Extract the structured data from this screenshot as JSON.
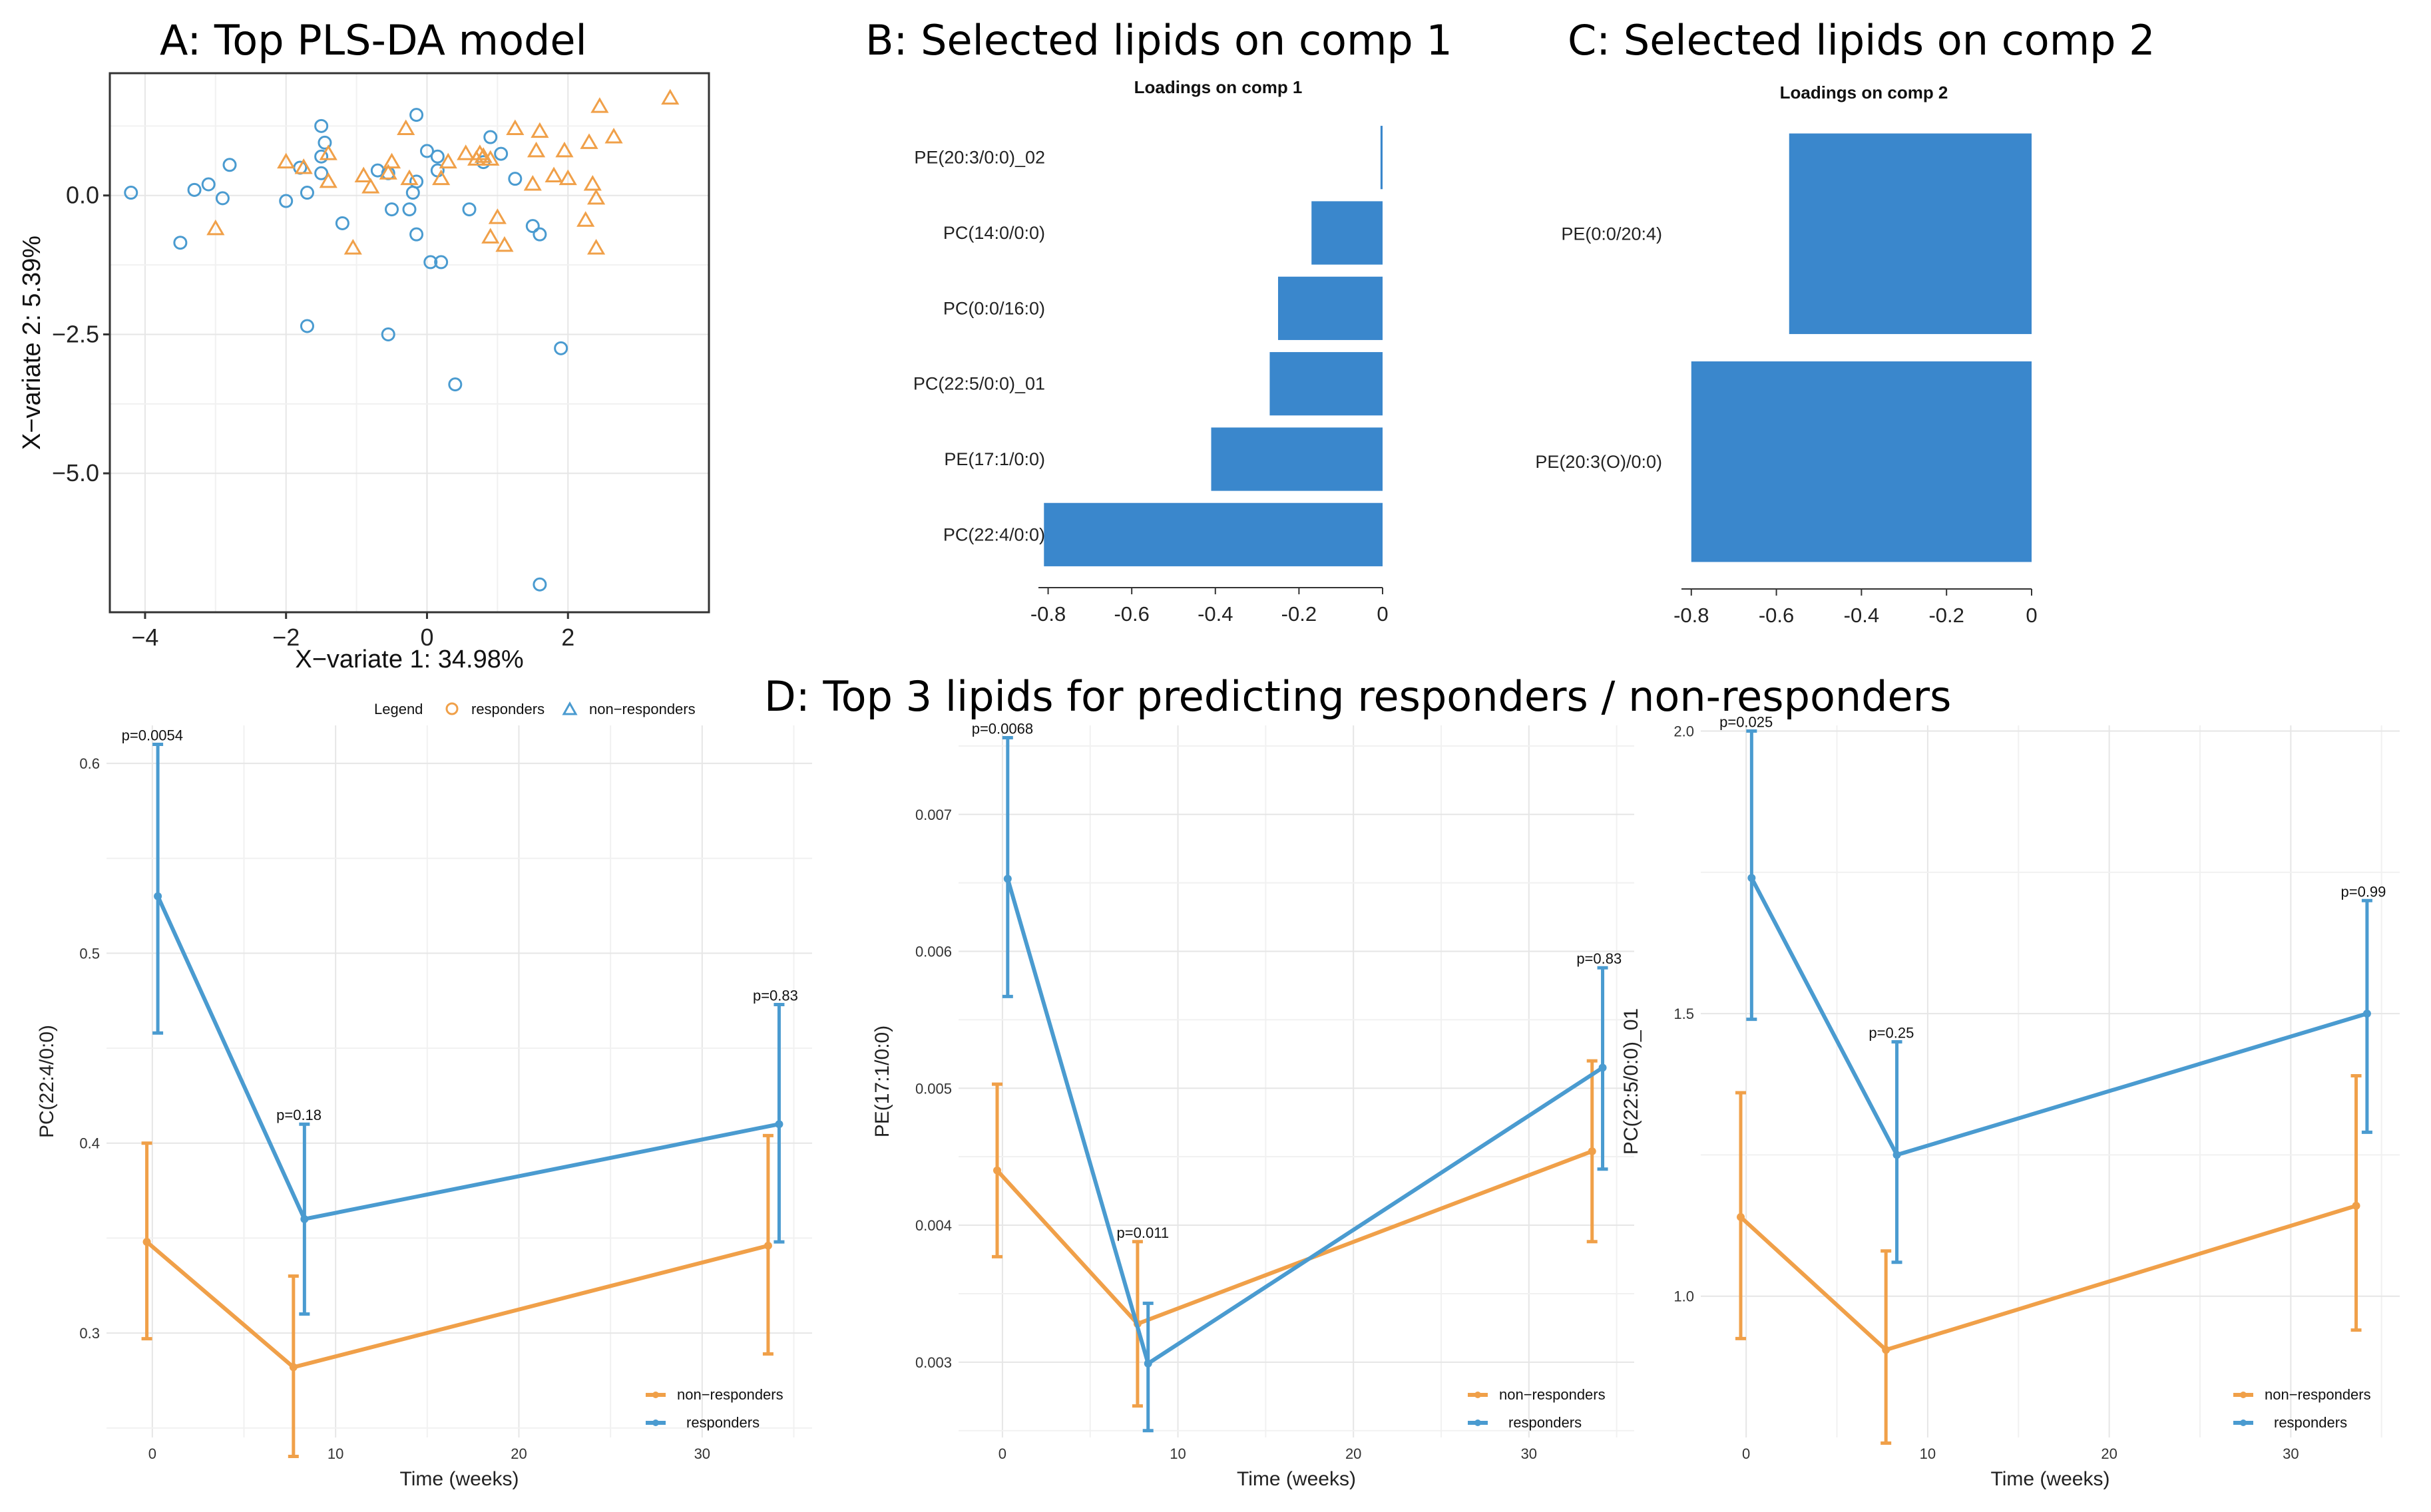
{
  "panel_titles": {
    "a": "A: Top PLS-DA model",
    "b": "B: Selected lipids on comp 1",
    "c": "C: Selected lipids on comp 2",
    "d": "D: Top 3 lipids for predicting responders / non-responders"
  },
  "colors": {
    "orange": "#F0A049",
    "blue": "#4A9BD0",
    "bar": "#3A87CC"
  },
  "chart_data": [
    {
      "id": "A",
      "type": "scatter",
      "title": "A: Top PLS-DA model",
      "xlabel": "X−variate 1: 34.98%",
      "ylabel": "X−variate 2: 5.39%",
      "xlim": [
        -4.5,
        4.0
      ],
      "ylim": [
        -7.5,
        2.2
      ],
      "xticks": [
        -4,
        -2,
        0,
        2
      ],
      "xtick_labels": [
        "−4",
        "−2",
        "0",
        "2"
      ],
      "yticks": [
        0,
        -2.5,
        -5
      ],
      "ytick_labels": [
        "0.0",
        "−2.5",
        "−5.0"
      ],
      "legend": {
        "title": "Legend",
        "entries": [
          "responders",
          "non−responders"
        ]
      },
      "series": [
        {
          "name": "responders",
          "marker": "circle",
          "points": [
            [
              -4.2,
              0.05
            ],
            [
              -3.5,
              -0.85
            ],
            [
              -3.3,
              0.1
            ],
            [
              -3.1,
              0.2
            ],
            [
              -2.9,
              -0.05
            ],
            [
              -2.8,
              0.55
            ],
            [
              -2.0,
              -0.1
            ],
            [
              -1.8,
              0.5
            ],
            [
              -1.7,
              0.05
            ],
            [
              -1.5,
              1.25
            ],
            [
              -1.5,
              0.7
            ],
            [
              -1.45,
              0.95
            ],
            [
              -1.5,
              0.4
            ],
            [
              -1.2,
              -0.5
            ],
            [
              -0.7,
              0.45
            ],
            [
              -0.55,
              0.4
            ],
            [
              -0.5,
              -0.25
            ],
            [
              -0.25,
              -0.25
            ],
            [
              -0.2,
              0.05
            ],
            [
              -0.15,
              -0.7
            ],
            [
              -0.15,
              0.25
            ],
            [
              -0.15,
              1.45
            ],
            [
              0.0,
              0.8
            ],
            [
              0.05,
              -1.2
            ],
            [
              0.15,
              0.7
            ],
            [
              0.15,
              0.45
            ],
            [
              0.2,
              -1.2
            ],
            [
              0.6,
              -0.25
            ],
            [
              0.8,
              0.6
            ],
            [
              0.9,
              1.05
            ],
            [
              1.05,
              0.75
            ],
            [
              1.25,
              0.3
            ],
            [
              1.5,
              -0.55
            ],
            [
              1.6,
              -0.7
            ],
            [
              1.9,
              -2.75
            ],
            [
              -1.7,
              -2.35
            ],
            [
              -0.55,
              -2.5
            ],
            [
              0.4,
              -3.4
            ],
            [
              1.6,
              -7.0
            ]
          ]
        },
        {
          "name": "non−responders",
          "marker": "triangle",
          "points": [
            [
              -3.0,
              -0.6
            ],
            [
              -2.0,
              0.6
            ],
            [
              -1.75,
              0.5
            ],
            [
              -1.4,
              0.75
            ],
            [
              -1.4,
              0.25
            ],
            [
              -1.05,
              -0.95
            ],
            [
              -0.9,
              0.35
            ],
            [
              -0.8,
              0.15
            ],
            [
              -0.55,
              0.4
            ],
            [
              -0.5,
              0.6
            ],
            [
              -0.3,
              1.2
            ],
            [
              -0.25,
              0.3
            ],
            [
              0.2,
              0.3
            ],
            [
              0.3,
              0.6
            ],
            [
              0.55,
              0.75
            ],
            [
              0.7,
              0.65
            ],
            [
              0.75,
              0.75
            ],
            [
              0.8,
              0.7
            ],
            [
              0.9,
              0.65
            ],
            [
              0.9,
              -0.75
            ],
            [
              1.0,
              -0.4
            ],
            [
              1.1,
              -0.9
            ],
            [
              1.25,
              1.2
            ],
            [
              1.5,
              0.2
            ],
            [
              1.55,
              0.8
            ],
            [
              1.6,
              1.15
            ],
            [
              1.8,
              0.35
            ],
            [
              1.95,
              0.8
            ],
            [
              2.0,
              0.3
            ],
            [
              2.25,
              -0.45
            ],
            [
              2.3,
              0.95
            ],
            [
              2.35,
              0.2
            ],
            [
              2.4,
              -0.05
            ],
            [
              2.4,
              -0.95
            ],
            [
              2.45,
              1.6
            ],
            [
              2.65,
              1.05
            ],
            [
              3.45,
              1.75
            ]
          ]
        }
      ]
    },
    {
      "id": "B",
      "type": "bar",
      "orientation": "horizontal",
      "title": "Loadings on comp 1",
      "categories": [
        "PE(20:3/0:0)_02",
        "PC(14:0/0:0)",
        "PC(0:0/16:0)",
        "PC(22:5/0:0)_01",
        "PE(17:1/0:0)",
        "PC(22:4/0:0)"
      ],
      "values": [
        -0.005,
        -0.17,
        -0.25,
        -0.27,
        -0.41,
        -0.81
      ],
      "xlim": [
        -0.82,
        0
      ],
      "xticks": [
        -0.8,
        -0.6,
        -0.4,
        -0.2,
        0
      ],
      "xtick_labels": [
        "-0.8",
        "-0.6",
        "-0.4",
        "-0.2",
        "0"
      ]
    },
    {
      "id": "C",
      "type": "bar",
      "orientation": "horizontal",
      "title": "Loadings on comp 2",
      "categories": [
        "PE(0:0/20:4)",
        "PE(20:3(O)/0:0)"
      ],
      "values": [
        -0.57,
        -0.8
      ],
      "xlim": [
        -0.82,
        0
      ],
      "xticks": [
        -0.8,
        -0.6,
        -0.4,
        -0.2,
        0
      ],
      "xtick_labels": [
        "-0.8",
        "-0.6",
        "-0.4",
        "-0.2",
        "0"
      ]
    },
    {
      "id": "D1",
      "type": "line",
      "xlabel": "Time (weeks)",
      "ylabel": "PC(22:4/0:0)",
      "xlim": [
        -2.5,
        36
      ],
      "ylim": [
        0.245,
        0.62
      ],
      "xticks": [
        0,
        10,
        20,
        30
      ],
      "xtick_labels": [
        "0",
        "10",
        "20",
        "30"
      ],
      "yticks": [
        0.3,
        0.4,
        0.5,
        0.6
      ],
      "ytick_labels": [
        "0.3",
        "0.4",
        "0.5",
        "0.6"
      ],
      "series": [
        {
          "name": "non−responders",
          "color": "#F0A049",
          "x": [
            -0.3,
            7.7,
            33.6
          ],
          "y": [
            0.348,
            0.282,
            0.346
          ],
          "lo": [
            0.297,
            0.235,
            0.289
          ],
          "hi": [
            0.4,
            0.33,
            0.404
          ]
        },
        {
          "name": "responders",
          "color": "#4A9BD0",
          "x": [
            0.3,
            8.3,
            34.2
          ],
          "y": [
            0.53,
            0.36,
            0.41
          ],
          "lo": [
            0.458,
            0.31,
            0.348
          ],
          "hi": [
            0.61,
            0.41,
            0.473
          ]
        }
      ],
      "pvalues": [
        {
          "x": 0,
          "y": 0.61,
          "text": "p=0.0054"
        },
        {
          "x": 8,
          "y": 0.41,
          "text": "p=0.18"
        },
        {
          "x": 34,
          "y": 0.473,
          "text": "p=0.83"
        }
      ],
      "legend": [
        "non−responders",
        "responders"
      ]
    },
    {
      "id": "D2",
      "type": "line",
      "xlabel": "Time (weeks)",
      "ylabel": "PE(17:1/0:0)",
      "xlim": [
        -2.5,
        36
      ],
      "ylim": [
        0.00245,
        0.00765
      ],
      "xticks": [
        0,
        10,
        20,
        30
      ],
      "xtick_labels": [
        "0",
        "10",
        "20",
        "30"
      ],
      "yticks": [
        0.003,
        0.004,
        0.005,
        0.006,
        0.007
      ],
      "ytick_labels": [
        "0.003",
        "0.004",
        "0.005",
        "0.006",
        "0.007"
      ],
      "series": [
        {
          "name": "non−responders",
          "color": "#F0A049",
          "x": [
            -0.3,
            7.7,
            33.6
          ],
          "y": [
            0.0044,
            0.00328,
            0.00454
          ],
          "lo": [
            0.00377,
            0.00268,
            0.00388
          ],
          "hi": [
            0.00503,
            0.00388,
            0.0052
          ]
        },
        {
          "name": "responders",
          "color": "#4A9BD0",
          "x": [
            0.3,
            8.3,
            34.2
          ],
          "y": [
            0.00653,
            0.00299,
            0.00515
          ],
          "lo": [
            0.00567,
            0.0025,
            0.00441
          ],
          "hi": [
            0.00756,
            0.00343,
            0.00588
          ]
        }
      ],
      "pvalues": [
        {
          "x": 0,
          "y": 0.00756,
          "text": "p=0.0068"
        },
        {
          "x": 8,
          "y": 0.00388,
          "text": "p=0.011"
        },
        {
          "x": 34,
          "y": 0.00588,
          "text": "p=0.83"
        }
      ],
      "legend": [
        "non−responders",
        "responders"
      ]
    },
    {
      "id": "D3",
      "type": "line",
      "xlabel": "Time (weeks)",
      "ylabel": "PC(22:5/0:0)_01",
      "xlim": [
        -2.5,
        36
      ],
      "ylim": [
        0.75,
        2.01
      ],
      "xticks": [
        0,
        10,
        20,
        30
      ],
      "xtick_labels": [
        "0",
        "10",
        "20",
        "30"
      ],
      "yticks": [
        1.0,
        1.5,
        2.0
      ],
      "ytick_labels": [
        "1.0",
        "1.5",
        "2.0"
      ],
      "series": [
        {
          "name": "non−responders",
          "color": "#F0A049",
          "x": [
            -0.3,
            7.7,
            33.6
          ],
          "y": [
            1.14,
            0.905,
            1.16
          ],
          "lo": [
            0.925,
            0.74,
            0.94
          ],
          "hi": [
            1.36,
            1.08,
            1.39
          ]
        },
        {
          "name": "responders",
          "color": "#4A9BD0",
          "x": [
            0.3,
            8.3,
            34.2
          ],
          "y": [
            1.74,
            1.25,
            1.5
          ],
          "lo": [
            1.49,
            1.06,
            1.29
          ],
          "hi": [
            2.0,
            1.45,
            1.7
          ]
        }
      ],
      "pvalues": [
        {
          "x": 0,
          "y": 2.0,
          "text": "p=0.025"
        },
        {
          "x": 8,
          "y": 1.45,
          "text": "p=0.25"
        },
        {
          "x": 34,
          "y": 1.7,
          "text": "p=0.99"
        }
      ],
      "legend": [
        "non−responders",
        "responders"
      ]
    }
  ]
}
